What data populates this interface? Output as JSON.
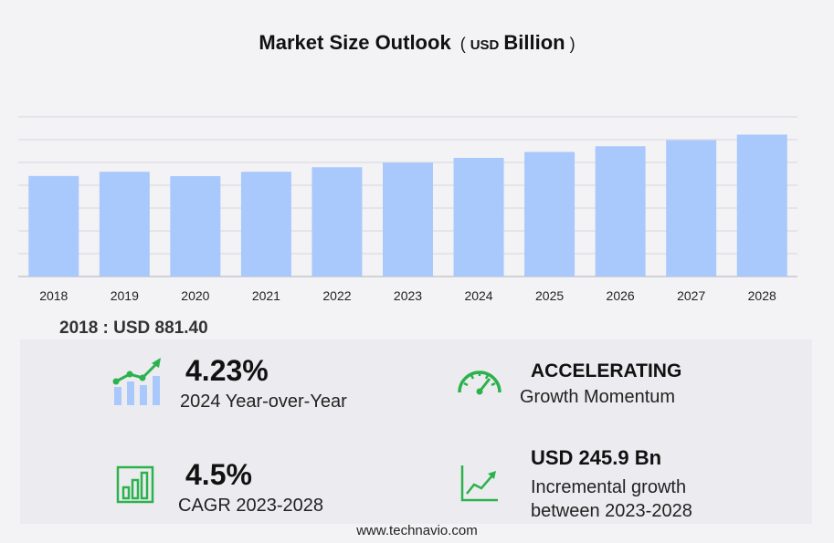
{
  "header": {
    "title": "Market Size Outlook",
    "unit_prefix": "USD",
    "unit_main": "Billion"
  },
  "chart_data": {
    "type": "bar",
    "title": "Market Size Outlook",
    "xlabel": "",
    "ylabel": "",
    "categories": [
      "2018",
      "2019",
      "2020",
      "2021",
      "2022",
      "2023",
      "2024",
      "2025",
      "2026",
      "2027",
      "2028"
    ],
    "values": [
      881.4,
      918,
      880,
      918,
      958,
      998,
      1040,
      1092,
      1142,
      1195,
      1244
    ],
    "ylim": [
      0,
      1400
    ],
    "grid": true,
    "bar_color": "#a9c8fb"
  },
  "base_stat": {
    "label": "2018 : USD  881.40"
  },
  "kpis": {
    "yoy": {
      "value": "4.23%",
      "label": "2024 Year-over-Year",
      "icon": "growth-bars-icon"
    },
    "momentum": {
      "value": "ACCELERATING",
      "label": "Growth Momentum",
      "icon": "speedometer-icon"
    },
    "cagr": {
      "value": "4.5%",
      "label": "CAGR 2023-2028",
      "icon": "bar-chart-icon"
    },
    "incremental": {
      "value": "USD 245.9 Bn",
      "label_line1": "Incremental growth",
      "label_line2": "between 2023-2028",
      "icon": "trend-line-icon"
    }
  },
  "footer": {
    "text": "www.technavio.com"
  },
  "colors": {
    "accent_green": "#2bb24c",
    "bar_fill": "#a9c8fb",
    "grid": "#d6d6dc"
  }
}
